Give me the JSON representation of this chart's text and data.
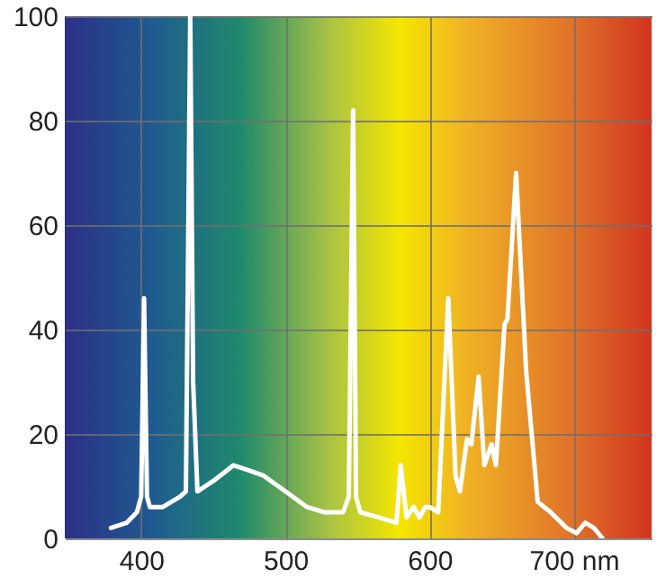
{
  "chart_data": {
    "type": "line",
    "series": [
      {
        "color": "#ffffff",
        "x": [
          379,
          390,
          397,
          400,
          402,
          404,
          406,
          415,
          427,
          431,
          434,
          436,
          439,
          450,
          464,
          475,
          485,
          500,
          515,
          527,
          540,
          544,
          547,
          549,
          552,
          565,
          577,
          580,
          584,
          589,
          593,
          597,
          600,
          606,
          613,
          618,
          621,
          626,
          629,
          634,
          638,
          643,
          646,
          652,
          654,
          660,
          667,
          675,
          684,
          695,
          702,
          708,
          714,
          720
        ],
        "values": [
          2,
          3,
          5,
          8,
          46,
          8,
          6,
          6,
          8,
          9,
          100,
          30,
          9,
          11,
          14,
          13,
          12,
          9,
          6,
          5,
          5,
          8,
          82,
          8,
          5,
          4,
          3,
          14,
          4,
          6,
          4,
          6,
          6,
          5,
          46,
          12,
          9,
          19,
          18,
          31,
          14,
          18,
          14,
          41,
          42,
          70,
          32,
          7,
          5,
          2,
          1,
          3,
          2,
          0
        ]
      }
    ],
    "xlim": [
      347,
      754
    ],
    "xticks": [
      400,
      500,
      600,
      {
        "value": 700,
        "label": "700 nm"
      }
    ],
    "ylim": [
      0,
      100
    ],
    "yticks": [
      0,
      20,
      40,
      60,
      80,
      100
    ],
    "grid": true,
    "marker": "none",
    "line_style": "solid"
  }
}
